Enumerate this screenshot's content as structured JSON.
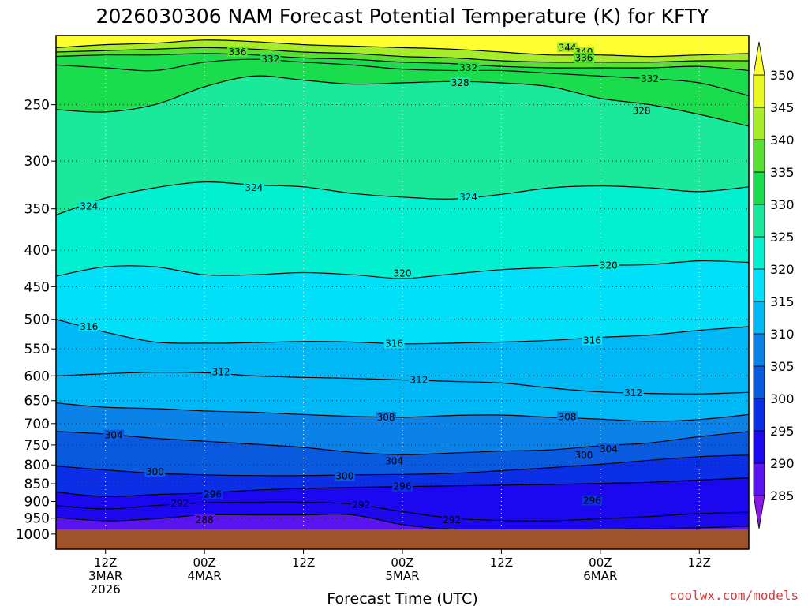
{
  "title": "2026030306 NAM Forecast Potential Temperature (K) for KFTY",
  "credit": "coolwx.com/models",
  "chart_data": {
    "type": "heatmap",
    "title": "2026030306 NAM Forecast Potential Temperature (K) for KFTY",
    "xlabel": "Forecast Time (UTC)",
    "ylabel": "",
    "x_range_hours_from_init": [
      0,
      84
    ],
    "y_range_hpa": [
      1050,
      200
    ],
    "y_scale": "log-pressure",
    "y_ticks": [
      250,
      300,
      350,
      400,
      450,
      500,
      550,
      600,
      650,
      700,
      750,
      800,
      850,
      900,
      950,
      1000
    ],
    "x_ticks": [
      {
        "hour": 6,
        "lines": [
          "12Z",
          "3MAR",
          "2026"
        ]
      },
      {
        "hour": 18,
        "lines": [
          "00Z",
          "4MAR"
        ]
      },
      {
        "hour": 30,
        "lines": [
          "12Z"
        ]
      },
      {
        "hour": 42,
        "lines": [
          "00Z",
          "5MAR"
        ]
      },
      {
        "hour": 54,
        "lines": [
          "12Z"
        ]
      },
      {
        "hour": 66,
        "lines": [
          "00Z",
          "6MAR"
        ]
      },
      {
        "hour": 78,
        "lines": [
          "12Z"
        ]
      }
    ],
    "grid": true,
    "colorbar": {
      "placement": "right",
      "levels": [
        285,
        290,
        295,
        300,
        305,
        310,
        315,
        320,
        325,
        330,
        335,
        340,
        345,
        350
      ],
      "colors": [
        "#8a18e8",
        "#5a14f0",
        "#1c08f0",
        "#0a2fe6",
        "#0a5ae0",
        "#0a82e8",
        "#00b8f5",
        "#00e0f8",
        "#00f0d0",
        "#1ae89a",
        "#1add4e",
        "#58e030",
        "#a6ec28",
        "#e8f820",
        "#ffff30"
      ]
    },
    "isotherms": [
      {
        "value": 344,
        "p": [
          208,
          206,
          205,
          203,
          204,
          206,
          207,
          208,
          209,
          211,
          213,
          213,
          214,
          213,
          212
        ]
      },
      {
        "value": 340,
        "p": [
          211,
          210,
          209,
          208,
          209,
          211,
          212,
          214,
          215,
          217,
          218,
          218,
          218,
          217,
          217
        ]
      },
      {
        "value": 336,
        "p": [
          214,
          213,
          213,
          212,
          213,
          215,
          216,
          218,
          219,
          221,
          222,
          222,
          222,
          221,
          224
        ]
      },
      {
        "value": 332,
        "p": [
          220,
          222,
          224,
          218,
          216,
          218,
          220,
          223,
          224,
          224,
          226,
          228,
          230,
          233,
          243
        ]
      },
      {
        "value": 328,
        "p": [
          254,
          256,
          250,
          236,
          228,
          231,
          234,
          233,
          232,
          233,
          236,
          245,
          250,
          258,
          268
        ]
      },
      {
        "value": 324,
        "p": [
          357,
          338,
          327,
          321,
          324,
          326,
          333,
          337,
          339,
          334,
          327,
          325,
          327,
          331,
          326
        ]
      },
      {
        "value": 320,
        "p": [
          435,
          422,
          422,
          433,
          433,
          430,
          433,
          438,
          432,
          426,
          423,
          420,
          419,
          414,
          416
        ]
      },
      {
        "value": 316,
        "p": [
          500,
          521,
          538,
          540,
          539,
          537,
          538,
          541,
          540,
          538,
          535,
          530,
          526,
          518,
          512
        ]
      },
      {
        "value": 312,
        "p": [
          600,
          596,
          593,
          594,
          600,
          603,
          605,
          608,
          611,
          614,
          624,
          632,
          635,
          636,
          633
        ]
      },
      {
        "value": 308,
        "p": [
          655,
          664,
          667,
          672,
          675,
          680,
          684,
          686,
          682,
          681,
          686,
          690,
          695,
          691,
          680
        ]
      },
      {
        "value": 304,
        "p": [
          718,
          724,
          734,
          741,
          748,
          756,
          768,
          774,
          770,
          765,
          762,
          752,
          745,
          730,
          718
        ]
      },
      {
        "value": 300,
        "p": [
          803,
          813,
          822,
          826,
          828,
          828,
          826,
          825,
          822,
          815,
          807,
          798,
          788,
          779,
          775
        ]
      },
      {
        "value": 296,
        "p": [
          873,
          886,
          880,
          876,
          868,
          863,
          860,
          858,
          856,
          854,
          852,
          849,
          846,
          840,
          834
        ]
      },
      {
        "value": 292,
        "p": [
          912,
          922,
          912,
          904,
          902,
          902,
          908,
          930,
          950,
          957,
          958,
          952,
          945,
          936,
          932
        ]
      },
      {
        "value": 288,
        "p": [
          948,
          958,
          952,
          940,
          940,
          940,
          940,
          970,
          985,
          990,
          990,
          985,
          982,
          980,
          975
        ]
      }
    ],
    "contour_labels": [
      {
        "value": 336,
        "hour": 22,
        "p": 211
      },
      {
        "value": 332,
        "hour": 26,
        "p": 216
      },
      {
        "value": 344,
        "hour": 62,
        "p": 208
      },
      {
        "value": 340,
        "hour": 64,
        "p": 211
      },
      {
        "value": 336,
        "hour": 64,
        "p": 215
      },
      {
        "value": 332,
        "hour": 50,
        "p": 222
      },
      {
        "value": 328,
        "hour": 49,
        "p": 233
      },
      {
        "value": 332,
        "hour": 72,
        "p": 230
      },
      {
        "value": 328,
        "hour": 71,
        "p": 255
      },
      {
        "value": 324,
        "hour": 4,
        "p": 347
      },
      {
        "value": 324,
        "hour": 24,
        "p": 327
      },
      {
        "value": 324,
        "hour": 50,
        "p": 337
      },
      {
        "value": 320,
        "hour": 42,
        "p": 431
      },
      {
        "value": 320,
        "hour": 67,
        "p": 420
      },
      {
        "value": 316,
        "hour": 4,
        "p": 512
      },
      {
        "value": 316,
        "hour": 41,
        "p": 541
      },
      {
        "value": 316,
        "hour": 65,
        "p": 535
      },
      {
        "value": 312,
        "hour": 20,
        "p": 593
      },
      {
        "value": 312,
        "hour": 44,
        "p": 608
      },
      {
        "value": 312,
        "hour": 70,
        "p": 634
      },
      {
        "value": 308,
        "hour": 40,
        "p": 686
      },
      {
        "value": 308,
        "hour": 62,
        "p": 685
      },
      {
        "value": 304,
        "hour": 7,
        "p": 727
      },
      {
        "value": 304,
        "hour": 41,
        "p": 790
      },
      {
        "value": 304,
        "hour": 67,
        "p": 760
      },
      {
        "value": 300,
        "hour": 12,
        "p": 818
      },
      {
        "value": 300,
        "hour": 35,
        "p": 830
      },
      {
        "value": 300,
        "hour": 64,
        "p": 775
      },
      {
        "value": 296,
        "hour": 19,
        "p": 880
      },
      {
        "value": 296,
        "hour": 42,
        "p": 858
      },
      {
        "value": 296,
        "hour": 65,
        "p": 898
      },
      {
        "value": 292,
        "hour": 15,
        "p": 906
      },
      {
        "value": 292,
        "hour": 37,
        "p": 910
      },
      {
        "value": 292,
        "hour": 48,
        "p": 955
      },
      {
        "value": 288,
        "hour": 18,
        "p": 955
      }
    ]
  }
}
